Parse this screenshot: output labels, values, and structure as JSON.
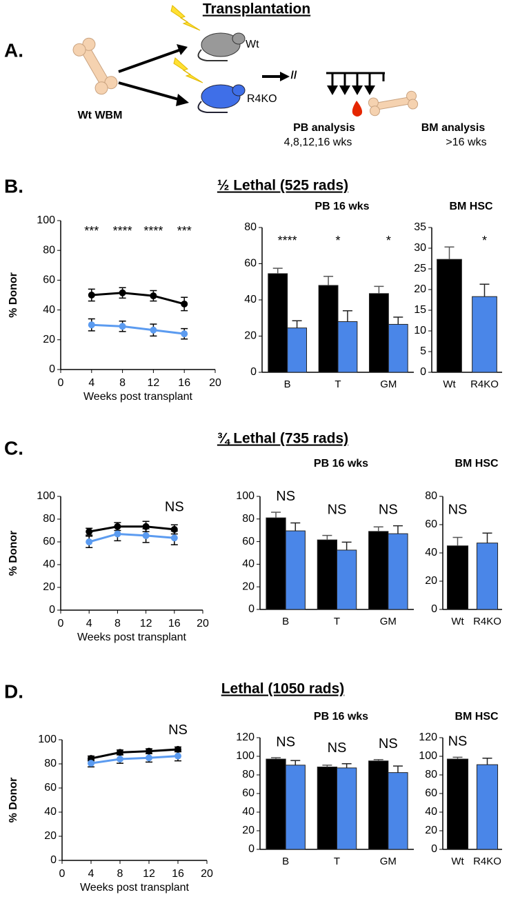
{
  "figure": {
    "title": "Transplantation",
    "panel_letters": [
      "A.",
      "B.",
      "C.",
      "D."
    ],
    "schematic": {
      "donor": "Wt WBM",
      "recipients": [
        "Wt",
        "R4KO"
      ],
      "break": "//",
      "pb_analysis": "PB analysis",
      "pb_times": "4,8,12,16 wks",
      "bm_analysis": "BM analysis",
      "bm_times": ">16 wks"
    },
    "panel_titles": [
      "½ Lethal (525 rads)",
      "¾ Lethal (735 rads)",
      "Lethal (1050 rads)"
    ]
  },
  "chart_data": [
    {
      "type": "line",
      "ylabel": "% Donor",
      "xlabel": "Weeks post transplant",
      "x": [
        4,
        8,
        12,
        16
      ],
      "xlim": [
        0,
        20
      ],
      "xticks": [
        0,
        4,
        8,
        12,
        16,
        20
      ],
      "ylim": [
        0,
        100
      ],
      "yticks": [
        0,
        20,
        40,
        60,
        80,
        100
      ],
      "series": [
        {
          "color": "#000000",
          "values": [
            50,
            51.5,
            49.5,
            44
          ],
          "errors": [
            4,
            3.5,
            3.5,
            4.5
          ]
        },
        {
          "color": "#5b9bf0",
          "values": [
            30,
            29,
            26.5,
            24
          ],
          "errors": [
            4,
            3.5,
            4,
            3.5
          ]
        }
      ],
      "annotations": [
        "***",
        "****",
        "****",
        "***"
      ]
    },
    {
      "type": "bar",
      "title": "PB 16 wks",
      "categories": [
        "B",
        "T",
        "GM"
      ],
      "ylim": [
        0,
        80
      ],
      "yticks": [
        0,
        20,
        40,
        60,
        80
      ],
      "series": [
        {
          "color": "#000000",
          "values": [
            54.5,
            48,
            43.5
          ],
          "errors": [
            3,
            5,
            4
          ]
        },
        {
          "color": "#4a86e8",
          "values": [
            24.5,
            28,
            26.5
          ],
          "errors": [
            4,
            6,
            4
          ]
        }
      ],
      "annotations": [
        "****",
        "*",
        "*"
      ]
    },
    {
      "type": "bar",
      "title": "BM HSC",
      "categories": [
        "Wt",
        "R4KO"
      ],
      "ylim": [
        0,
        35
      ],
      "yticks": [
        0,
        5,
        10,
        15,
        20,
        25,
        30,
        35
      ],
      "colors": [
        "#000000",
        "#4a86e8"
      ],
      "values": [
        27.3,
        18.3
      ],
      "errors": [
        3,
        3
      ],
      "annotations": [
        null,
        "*"
      ]
    },
    {
      "type": "line",
      "ylabel": "% Donor",
      "xlabel": "Weeks post transplant",
      "x": [
        4,
        8,
        12,
        16
      ],
      "xlim": [
        0,
        20
      ],
      "xticks": [
        0,
        4,
        8,
        12,
        16,
        20
      ],
      "ylim": [
        0,
        100
      ],
      "yticks": [
        0,
        20,
        40,
        60,
        80,
        100
      ],
      "series": [
        {
          "color": "#000000",
          "values": [
            69,
            73.5,
            73.5,
            71
          ],
          "errors": [
            3,
            3.5,
            4.5,
            4
          ]
        },
        {
          "color": "#5b9bf0",
          "values": [
            60,
            67,
            65.5,
            63.5
          ],
          "errors": [
            5,
            6,
            6,
            6
          ]
        }
      ],
      "annotations": [
        null,
        null,
        null,
        "NS"
      ]
    },
    {
      "type": "bar",
      "title": "PB 16 wks",
      "categories": [
        "B",
        "T",
        "GM"
      ],
      "ylim": [
        0,
        100
      ],
      "yticks": [
        0,
        20,
        40,
        60,
        80,
        100
      ],
      "series": [
        {
          "color": "#000000",
          "values": [
            81,
            61.5,
            69
          ],
          "errors": [
            5,
            4,
            4
          ]
        },
        {
          "color": "#4a86e8",
          "values": [
            69.5,
            52.5,
            67
          ],
          "errors": [
            7,
            7,
            7
          ]
        }
      ],
      "annotations": [
        "NS",
        "NS",
        "NS"
      ]
    },
    {
      "type": "bar",
      "title": "BM HSC",
      "categories": [
        "Wt",
        "R4KO"
      ],
      "ylim": [
        0,
        80
      ],
      "yticks": [
        0,
        20,
        40,
        60,
        80
      ],
      "colors": [
        "#000000",
        "#4a86e8"
      ],
      "values": [
        45,
        47
      ],
      "errors": [
        6,
        7
      ],
      "annotations": [
        "NS",
        null
      ]
    },
    {
      "type": "line",
      "ylabel": "% Donor",
      "xlabel": "Weeks post transplant",
      "x": [
        4,
        8,
        12,
        16
      ],
      "xlim": [
        0,
        20
      ],
      "xticks": [
        0,
        4,
        8,
        12,
        16,
        20
      ],
      "ylim": [
        0,
        100
      ],
      "yticks": [
        0,
        20,
        40,
        60,
        80,
        100
      ],
      "series": [
        {
          "color": "#000000",
          "values": [
            84.5,
            89.5,
            90.5,
            92
          ],
          "errors": [
            2,
            2,
            2,
            2
          ]
        },
        {
          "color": "#5b9bf0",
          "values": [
            80.5,
            84,
            85,
            86.5
          ],
          "errors": [
            3,
            3.5,
            3.5,
            4
          ]
        }
      ],
      "annotations": [
        null,
        null,
        null,
        "NS"
      ]
    },
    {
      "type": "bar",
      "title": "PB 16 wks",
      "categories": [
        "B",
        "T",
        "GM"
      ],
      "ylim": [
        0,
        120
      ],
      "yticks": [
        0,
        20,
        40,
        60,
        80,
        100,
        120
      ],
      "series": [
        {
          "color": "#000000",
          "values": [
            97,
            88.5,
            95
          ],
          "errors": [
            1.5,
            2,
            1.5
          ]
        },
        {
          "color": "#4a86e8",
          "values": [
            90.5,
            87.5,
            82.5
          ],
          "errors": [
            5,
            4.5,
            7
          ]
        }
      ],
      "annotations": [
        "NS",
        "NS",
        "NS"
      ]
    },
    {
      "type": "bar",
      "title": "BM HSC",
      "categories": [
        "Wt",
        "R4KO"
      ],
      "ylim": [
        0,
        120
      ],
      "yticks": [
        0,
        20,
        40,
        60,
        80,
        100,
        120
      ],
      "colors": [
        "#000000",
        "#4a86e8"
      ],
      "values": [
        97,
        91
      ],
      "errors": [
        2,
        7
      ],
      "annotations": [
        "NS",
        null
      ]
    }
  ]
}
